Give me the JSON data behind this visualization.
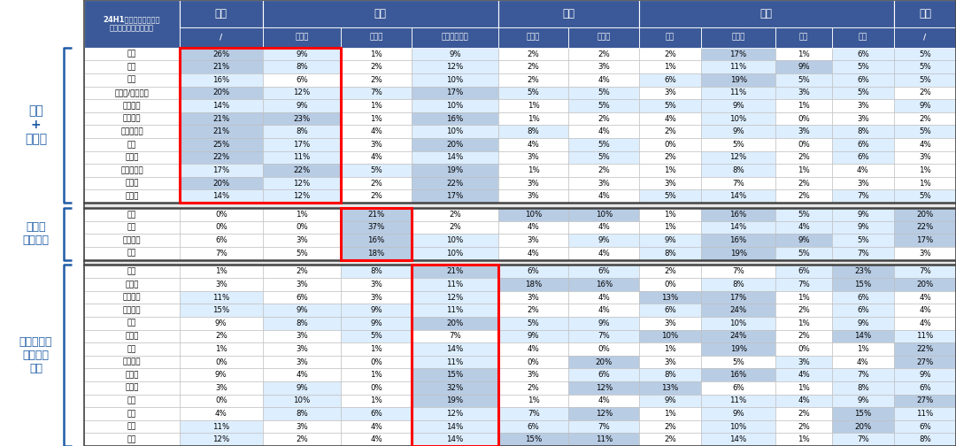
{
  "h2_labels": [
    "/",
    "英法德",
    "俄罗斯",
    "其他欧洲国家",
    "中美洲",
    "南美洲",
    "南亚",
    "东南亚",
    "中亚",
    "西亚",
    "/"
  ],
  "top_groups": [
    [
      "美国",
      0,
      1
    ],
    [
      "欧洲",
      1,
      4
    ],
    [
      "拉美",
      4,
      6
    ],
    [
      "亚洲",
      6,
      10
    ],
    [
      "非洲",
      10,
      11
    ]
  ],
  "group1_label": "美国\n+\n英法德",
  "group1_rows": [
    [
      "家居",
      "26%",
      "9%",
      "1%",
      "9%",
      "2%",
      "2%",
      "2%",
      "17%",
      "1%",
      "6%",
      "5%"
    ],
    [
      "服装",
      "21%",
      "8%",
      "2%",
      "12%",
      "2%",
      "3%",
      "1%",
      "11%",
      "9%",
      "5%",
      "5%"
    ],
    [
      "纺织",
      "16%",
      "6%",
      "2%",
      "10%",
      "2%",
      "4%",
      "6%",
      "19%",
      "5%",
      "6%",
      "5%"
    ],
    [
      "手工具/电动工具",
      "20%",
      "12%",
      "7%",
      "17%",
      "5%",
      "5%",
      "3%",
      "11%",
      "3%",
      "5%",
      "2%"
    ],
    [
      "化学制药",
      "14%",
      "9%",
      "1%",
      "10%",
      "1%",
      "5%",
      "5%",
      "9%",
      "1%",
      "3%",
      "9%"
    ],
    [
      "动力电池",
      "21%",
      "23%",
      "1%",
      "16%",
      "1%",
      "2%",
      "4%",
      "10%",
      "0%",
      "3%",
      "2%"
    ],
    [
      "汽车零部件",
      "21%",
      "8%",
      "4%",
      "10%",
      "8%",
      "4%",
      "2%",
      "9%",
      "3%",
      "8%",
      "5%"
    ],
    [
      "冰箱",
      "25%",
      "17%",
      "3%",
      "20%",
      "4%",
      "5%",
      "0%",
      "5%",
      "0%",
      "6%",
      "4%"
    ],
    [
      "洗衣机",
      "22%",
      "11%",
      "4%",
      "14%",
      "3%",
      "5%",
      "2%",
      "12%",
      "2%",
      "6%",
      "3%"
    ],
    [
      "扫地机器人",
      "17%",
      "22%",
      "5%",
      "19%",
      "1%",
      "2%",
      "1%",
      "8%",
      "1%",
      "4%",
      "1%"
    ],
    [
      "投影仪",
      "20%",
      "12%",
      "2%",
      "22%",
      "3%",
      "3%",
      "3%",
      "7%",
      "2%",
      "3%",
      "1%"
    ],
    [
      "充电桩",
      "14%",
      "12%",
      "2%",
      "17%",
      "3%",
      "4%",
      "5%",
      "14%",
      "2%",
      "7%",
      "5%"
    ]
  ],
  "group2_label": "俄罗斯\n敞口较大",
  "group2_rows": [
    [
      "重卡",
      "0%",
      "1%",
      "21%",
      "2%",
      "10%",
      "10%",
      "1%",
      "16%",
      "5%",
      "9%",
      "20%"
    ],
    [
      "农机",
      "0%",
      "0%",
      "37%",
      "2%",
      "4%",
      "4%",
      "1%",
      "14%",
      "4%",
      "9%",
      "22%"
    ],
    [
      "工程机械",
      "6%",
      "3%",
      "16%",
      "10%",
      "3%",
      "9%",
      "9%",
      "16%",
      "9%",
      "5%",
      "17%"
    ],
    [
      "机床",
      "7%",
      "5%",
      "18%",
      "10%",
      "4%",
      "4%",
      "8%",
      "19%",
      "5%",
      "7%",
      "3%"
    ]
  ],
  "group3_label": "国别分散，\n非美英法\n德俄",
  "group3_rows": [
    [
      "客车",
      "1%",
      "2%",
      "8%",
      "21%",
      "6%",
      "6%",
      "2%",
      "7%",
      "6%",
      "23%",
      "7%"
    ],
    [
      "摩托车",
      "3%",
      "3%",
      "3%",
      "11%",
      "18%",
      "16%",
      "0%",
      "8%",
      "7%",
      "15%",
      "20%"
    ],
    [
      "纺织设备",
      "11%",
      "6%",
      "3%",
      "12%",
      "3%",
      "4%",
      "13%",
      "17%",
      "1%",
      "6%",
      "4%"
    ],
    [
      "家具设备",
      "15%",
      "9%",
      "9%",
      "11%",
      "2%",
      "4%",
      "6%",
      "24%",
      "2%",
      "6%",
      "4%"
    ],
    [
      "叉车",
      "9%",
      "8%",
      "9%",
      "20%",
      "5%",
      "9%",
      "3%",
      "10%",
      "1%",
      "9%",
      "4%"
    ],
    [
      "注塑机",
      "2%",
      "3%",
      "5%",
      "7%",
      "9%",
      "7%",
      "10%",
      "24%",
      "2%",
      "14%",
      "11%"
    ],
    [
      "船舶",
      "1%",
      "3%",
      "1%",
      "14%",
      "4%",
      "0%",
      "1%",
      "19%",
      "0%",
      "1%",
      "22%"
    ],
    [
      "风电整机",
      "0%",
      "3%",
      "0%",
      "11%",
      "0%",
      "20%",
      "3%",
      "5%",
      "3%",
      "4%",
      "27%"
    ],
    [
      "变压器",
      "9%",
      "4%",
      "1%",
      "15%",
      "3%",
      "6%",
      "8%",
      "16%",
      "4%",
      "7%",
      "9%"
    ],
    [
      "逆变器",
      "3%",
      "9%",
      "0%",
      "32%",
      "2%",
      "12%",
      "13%",
      "6%",
      "1%",
      "8%",
      "6%"
    ],
    [
      "电表",
      "0%",
      "10%",
      "1%",
      "19%",
      "1%",
      "4%",
      "9%",
      "11%",
      "4%",
      "9%",
      "27%"
    ],
    [
      "轮胎",
      "4%",
      "8%",
      "6%",
      "12%",
      "7%",
      "12%",
      "1%",
      "9%",
      "2%",
      "15%",
      "11%"
    ],
    [
      "空调",
      "11%",
      "3%",
      "4%",
      "14%",
      "6%",
      "7%",
      "2%",
      "10%",
      "2%",
      "20%",
      "6%"
    ],
    [
      "电视",
      "12%",
      "2%",
      "4%",
      "14%",
      "15%",
      "11%",
      "2%",
      "14%",
      "1%",
      "7%",
      "8%"
    ]
  ],
  "bg_dark": "#3B5998",
  "bg_med": "#B8CCE4",
  "bg_light": "#DDEEFF",
  "bg_white": "#FFFFFF",
  "red_border": "#FF0000",
  "group_color": "#1F5CA6",
  "header_desc": "24H1中国出口链各行业\n在各地区的出口额占比"
}
